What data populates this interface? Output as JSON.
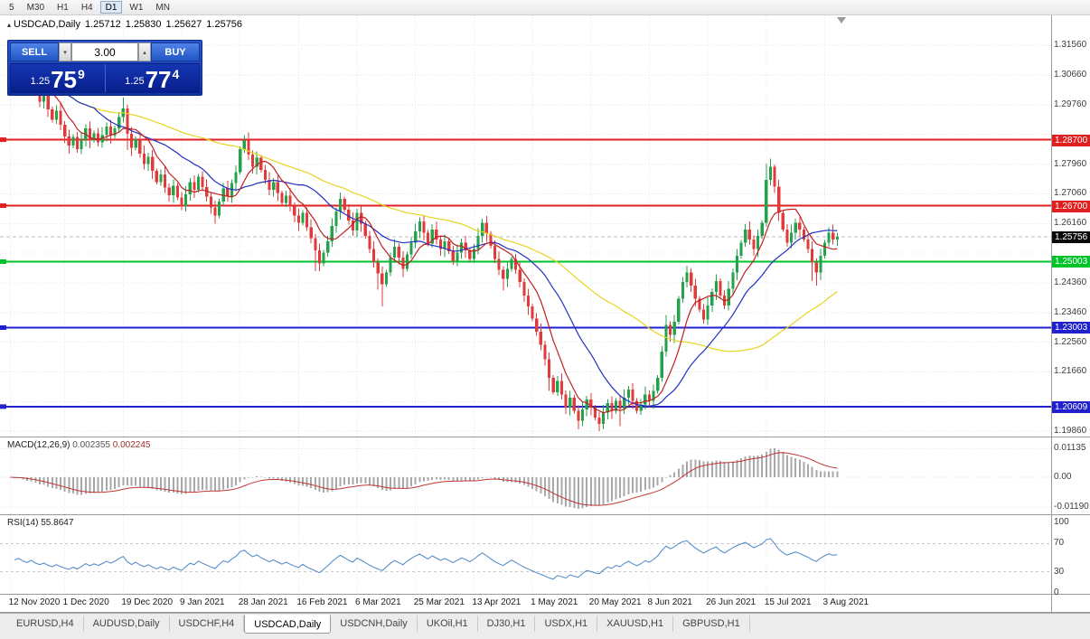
{
  "toolbar": {
    "periods": [
      {
        "label": "5"
      },
      {
        "label": "M30"
      },
      {
        "label": "H1"
      },
      {
        "label": "H4"
      },
      {
        "label": "D1",
        "active": true
      },
      {
        "label": "W1"
      },
      {
        "label": "MN"
      }
    ]
  },
  "icons": {
    "panel_toggle": "▴",
    "lot_dropdown": "▾",
    "lot_spinner": "▴"
  },
  "chart_header": {
    "title": "USDCAD,Daily",
    "open": "1.25712",
    "high": "1.25830",
    "low": "1.25627",
    "close": "1.25756"
  },
  "trade_panel": {
    "sell_label": "SELL",
    "buy_label": "BUY",
    "lots": "3.00",
    "sell_price": {
      "prefix": "1.25",
      "big": "75",
      "sup": "9"
    },
    "buy_price": {
      "prefix": "1.25",
      "big": "77",
      "sup": "4"
    }
  },
  "panes": {
    "macd": {
      "name": "MACD(12,26,9)",
      "value_main": "0.002355",
      "value_signal": "0.002245"
    },
    "rsi": {
      "name": "RSI(14)",
      "value": "55.8647"
    }
  },
  "tabs": {
    "items": [
      {
        "label": "EURUSD,H4"
      },
      {
        "label": "AUDUSD,Daily"
      },
      {
        "label": "USDCHF,H4"
      },
      {
        "label": "USDCAD,Daily",
        "active": true
      },
      {
        "label": "USDCNH,Daily"
      },
      {
        "label": "UKOil,H1"
      },
      {
        "label": "DJ30,H1"
      },
      {
        "label": "USDX,H1"
      },
      {
        "label": "XAUUSD,H1"
      },
      {
        "label": "GBPUSD,H1"
      }
    ]
  },
  "chart_data": {
    "type": "candlestick",
    "symbol": "USDCAD",
    "timeframe": "Daily",
    "ohlc": {
      "open": 1.25712,
      "high": 1.2583,
      "low": 1.25627,
      "close": 1.25756
    },
    "x_labels": [
      "12 Nov 2020",
      "1 Dec 2020",
      "19 Dec 2020",
      "9 Jan 2021",
      "28 Jan 2021",
      "16 Feb 2021",
      "6 Mar 2021",
      "25 Mar 2021",
      "13 Apr 2021",
      "1 May 2021",
      "20 May 2021",
      "8 Jun 2021",
      "26 Jun 2021",
      "15 Jul 2021",
      "3 Aug 2021"
    ],
    "label_indices": [
      0,
      13,
      27,
      41,
      55,
      69,
      83,
      97,
      111,
      125,
      139,
      153,
      167,
      181,
      195
    ],
    "closes": [
      1.3138,
      1.3095,
      1.3122,
      1.3068,
      1.304,
      1.3075,
      1.3018,
      1.2985,
      1.301,
      1.2962,
      1.293,
      1.2958,
      1.2915,
      1.288,
      1.2852,
      1.2878,
      1.2842,
      1.287,
      1.2905,
      1.2868,
      1.289,
      1.2862,
      1.2884,
      1.291,
      1.2882,
      1.2905,
      1.2938,
      1.2965,
      1.2888,
      1.2845,
      1.2872,
      1.2828,
      1.2796,
      1.2818,
      1.2775,
      1.2742,
      1.2764,
      1.2725,
      1.2702,
      1.273,
      1.2695,
      1.2668,
      1.2705,
      1.2742,
      1.2718,
      1.2758,
      1.2726,
      1.2698,
      1.2665,
      1.264,
      1.2682,
      1.2722,
      1.2698,
      1.2738,
      1.2772,
      1.2842,
      1.2868,
      1.2825,
      1.2788,
      1.2815,
      1.2778,
      1.2748,
      1.2718,
      1.2742,
      1.2708,
      1.2678,
      1.27,
      1.2668,
      1.264,
      1.2618,
      1.2648,
      1.2605,
      1.2572,
      1.2535,
      1.2495,
      1.2528,
      1.2562,
      1.2608,
      1.2652,
      1.269,
      1.2658,
      1.2625,
      1.2595,
      1.2648,
      1.2615,
      1.2578,
      1.2538,
      1.2498,
      1.2465,
      1.2432,
      1.2468,
      1.2512,
      1.2545,
      1.2512,
      1.2478,
      1.2522,
      1.2558,
      1.2592,
      1.2622,
      1.2588,
      1.2555,
      1.2598,
      1.2568,
      1.2538,
      1.2562,
      1.2532,
      1.2502,
      1.2528,
      1.2558,
      1.2535,
      1.2508,
      1.2538,
      1.2578,
      1.2618,
      1.2585,
      1.2548,
      1.2508,
      1.2475,
      1.2448,
      1.2478,
      1.2508,
      1.2475,
      1.2438,
      1.2398,
      1.2365,
      1.2328,
      1.2288,
      1.2248,
      1.2205,
      1.2148,
      1.2105,
      1.2138,
      1.2098,
      1.2058,
      1.2088,
      1.2048,
      1.2018,
      1.2052,
      1.2082,
      1.2058,
      1.2028,
      1.2008,
      1.2042,
      1.2072,
      1.2048,
      1.2078,
      1.2055,
      1.2088,
      1.2112,
      1.2078,
      1.2048,
      1.2068,
      1.2098,
      1.2078,
      1.2108,
      1.2148,
      1.2228,
      1.2308,
      1.2278,
      1.2318,
      1.2388,
      1.2438,
      1.2468,
      1.2428,
      1.2388,
      1.2355,
      1.2325,
      1.2368,
      1.2408,
      1.2442,
      1.2398,
      1.2368,
      1.2418,
      1.2468,
      1.2518,
      1.2558,
      1.2598,
      1.2568,
      1.2538,
      1.2578,
      1.2618,
      1.2748,
      1.2788,
      1.2728,
      1.2648,
      1.2598,
      1.2558,
      1.2588,
      1.2618,
      1.2598,
      1.2568,
      1.2538,
      1.2498,
      1.2468,
      1.2518,
      1.2558,
      1.2588,
      1.2568,
      1.2576
    ],
    "wick_overrides": {
      "0": {
        "h": 1.3172
      },
      "3": {
        "h": 1.3135
      },
      "27": {
        "h": 1.2998
      },
      "28": {
        "l": 1.2838
      },
      "73": {
        "l": 1.2472
      },
      "88": {
        "l": 1.2415
      },
      "89": {
        "l": 1.2365
      },
      "118": {
        "l": 1.2412
      },
      "124": {
        "l": 1.2338
      },
      "129": {
        "l": 1.2108
      },
      "136": {
        "l": 1.1992
      },
      "141": {
        "l": 1.1986
      },
      "146": {
        "l": 1.2002
      },
      "157": {
        "h": 1.2338
      },
      "162": {
        "h": 1.2488
      },
      "181": {
        "h": 1.2798
      },
      "182": {
        "h": 1.2812
      },
      "183": {
        "h": 1.2795
      },
      "192": {
        "l": 1.2442
      },
      "193": {
        "l": 1.2428
      }
    },
    "levels": [
      {
        "text": "1.28700",
        "value": 1.287,
        "color": "#e02020"
      },
      {
        "text": "1.26700",
        "value": 1.267,
        "color": "#e02020"
      },
      {
        "text": "1.25003",
        "value": 1.25003,
        "color": "#00c32a"
      },
      {
        "text": "1.23003",
        "value": 1.23003,
        "color": "#2020cc"
      },
      {
        "text": "1.20609",
        "value": 1.20609,
        "color": "#2020cc"
      }
    ],
    "current_price": {
      "text": "1.25756",
      "value": 1.25756,
      "badge_color": "#0a0a0a"
    },
    "y_axis_labels": [
      "1.31560",
      "1.30660",
      "1.29760",
      "1.27960",
      "1.27060",
      "1.26160",
      "1.24360",
      "1.23460",
      "1.22560",
      "1.21660",
      "1.19860"
    ],
    "grid_price_start": 1.3156,
    "grid_price_step": 0.009,
    "grid_price_count": 14,
    "moving_averages": [
      {
        "period": 8,
        "color": "#c02020"
      },
      {
        "period": 21,
        "color": "#2030c0"
      },
      {
        "period": 55,
        "color": "#e6d520"
      }
    ],
    "up_color": "#23a14b",
    "down_color": "#e03a3a",
    "macd": {
      "fast": 12,
      "slow": 26,
      "signal": 9,
      "hist_color": "#a8a8a8",
      "signal_color": "#c03535",
      "axis_labels": [
        "0.01135",
        "0.00",
        "-0.01190"
      ]
    },
    "rsi": {
      "period": 14,
      "color": "#4a86c8",
      "levels": [
        70,
        30
      ],
      "axis_labels": [
        "100",
        "70",
        "30",
        "0"
      ]
    }
  }
}
